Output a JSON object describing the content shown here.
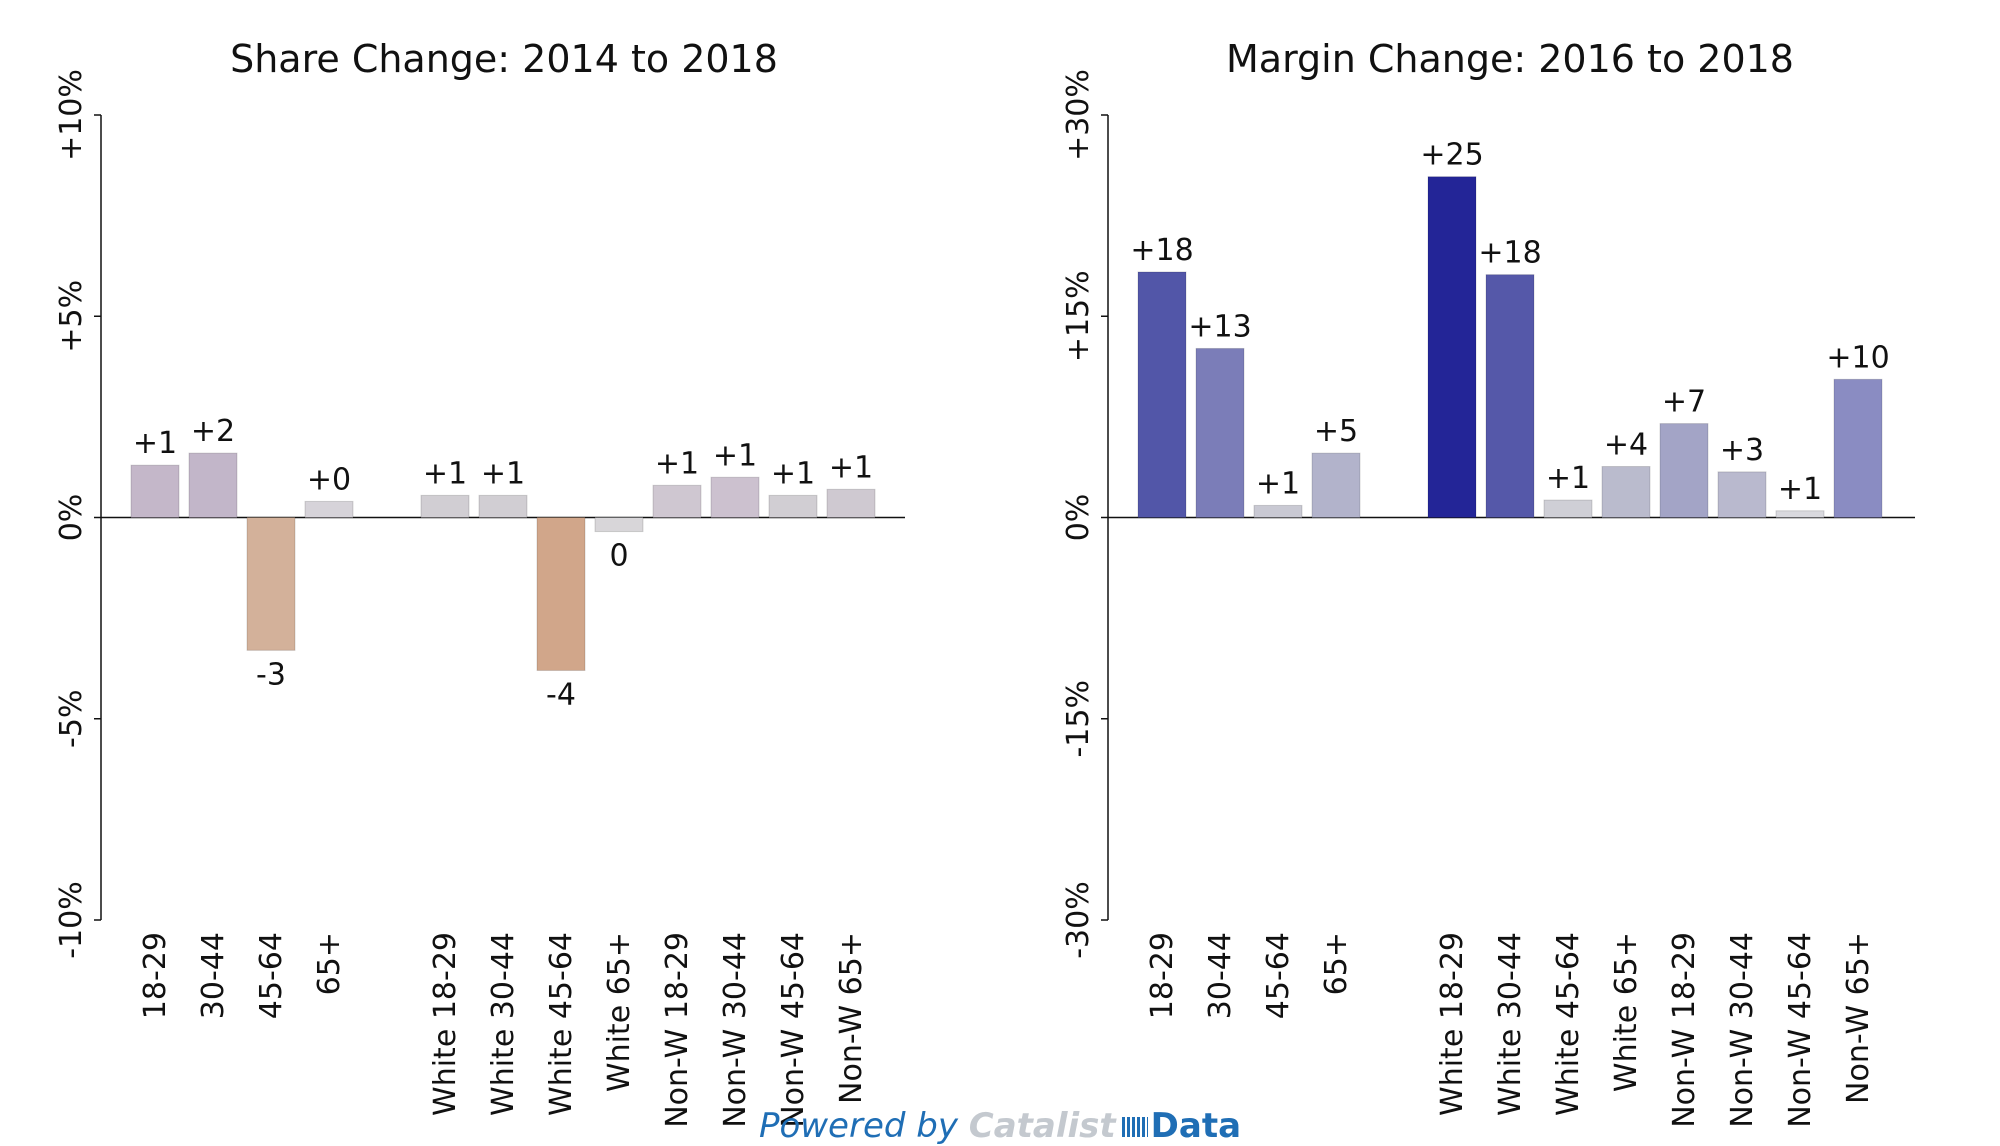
{
  "chart_data": [
    {
      "type": "bar",
      "title": "Share Change: 2014 to 2018",
      "ylim": [
        -10,
        10
      ],
      "yticks": [
        -10,
        -5,
        0,
        5,
        10
      ],
      "ytick_labels": [
        "-10%",
        "-5%",
        "0%",
        "+5%",
        "+10%"
      ],
      "categories": [
        "18-29",
        "30-44",
        "45-64",
        "65+",
        "White 18-29",
        "White 30-44",
        "White 45-64",
        "White 65+",
        "Non-W 18-29",
        "Non-W 30-44",
        "Non-W 45-64",
        "Non-W 65+"
      ],
      "values": [
        1.3,
        1.6,
        -3.3,
        0.4,
        0.55,
        0.55,
        -3.8,
        -0.35,
        0.8,
        1.0,
        0.55,
        0.7
      ],
      "value_labels": [
        "+1",
        "+2",
        "-3",
        "+0",
        "+1",
        "+1",
        "-4",
        "0",
        "+1",
        "+1",
        "+1",
        "+1"
      ],
      "colors": [
        "#c4b7c9",
        "#c2b6c9",
        "#d3b19a",
        "#d6d3d9",
        "#d1ced3",
        "#d1ced3",
        "#d1a68a",
        "#d8d6d9",
        "#cfc7d1",
        "#ccc1cf",
        "#d1ced3",
        "#cfc9d1"
      ],
      "xlabel": "",
      "ylabel": "",
      "grid": false
    },
    {
      "type": "bar",
      "title": "Margin Change: 2016 to 2018",
      "ylim": [
        -30,
        30
      ],
      "yticks": [
        -30,
        -15,
        0,
        15,
        30
      ],
      "ytick_labels": [
        "-30%",
        "-15%",
        "0%",
        "+15%",
        "+30%"
      ],
      "categories": [
        "18-29",
        "30-44",
        "45-64",
        "65+",
        "White 18-29",
        "White 30-44",
        "White 45-64",
        "White 65+",
        "Non-W 18-29",
        "Non-W 30-44",
        "Non-W 45-64",
        "Non-W 65+"
      ],
      "values": [
        18.3,
        12.6,
        0.9,
        4.8,
        25.4,
        18.1,
        1.3,
        3.8,
        7.0,
        3.4,
        0.5,
        10.3
      ],
      "value_labels": [
        "+18",
        "+13",
        "+1",
        "+5",
        "+25",
        "+18",
        "+1",
        "+4",
        "+7",
        "+3",
        "+1",
        "+10"
      ],
      "colors": [
        "#5256a8",
        "#7b7db8",
        "#c9c9d3",
        "#b2b3cb",
        "#232597",
        "#5558a9",
        "#cfcfd6",
        "#babbcd",
        "#a3a4c6",
        "#b9b9ce",
        "#d9d9de",
        "#8a8cc2"
      ],
      "xlabel": "",
      "ylabel": "",
      "grid": false
    }
  ],
  "footer": {
    "powered_by": "Powered by",
    "brand": "Catalist",
    "brand_suffix": "Data"
  }
}
